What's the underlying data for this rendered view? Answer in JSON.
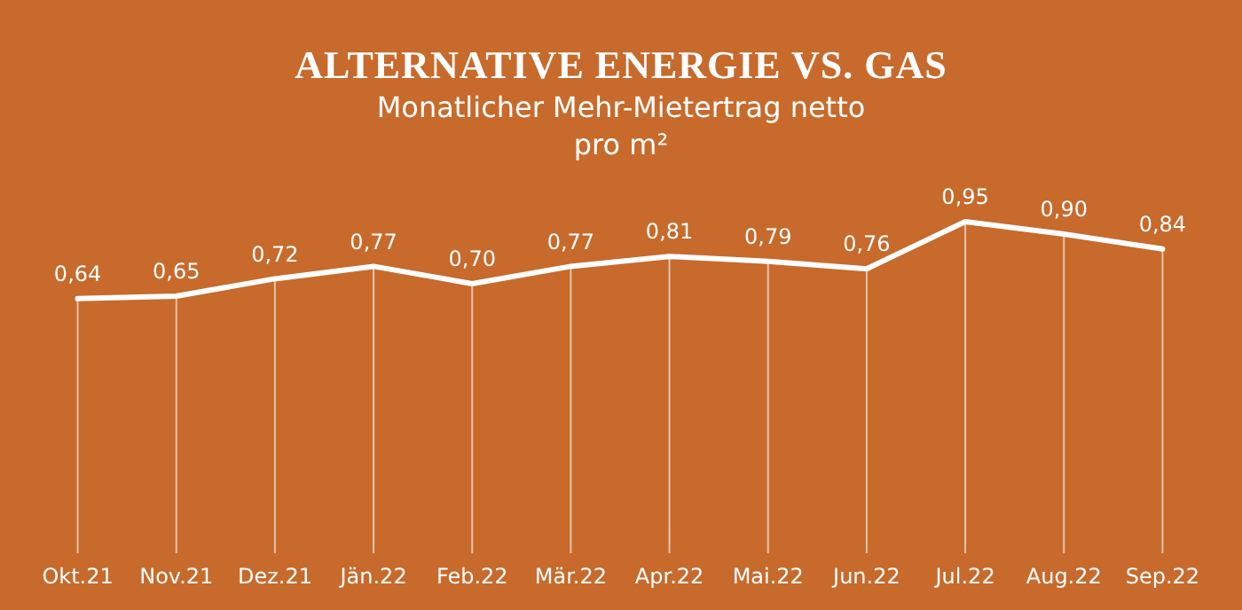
{
  "chart_data": {
    "type": "line",
    "title": "ALTERNATIVE ENERGIE VS. GAS",
    "subtitle": "Monatlicher Mehr-Mietertrag netto pro m²",
    "categories": [
      "Okt.21",
      "Nov.21",
      "Dez.21",
      "Jän.22",
      "Feb.22",
      "Mär.22",
      "Apr.22",
      "Mai.22",
      "Jun.22",
      "Jul.22",
      "Aug.22",
      "Sep.22"
    ],
    "values": [
      0.64,
      0.65,
      0.72,
      0.77,
      0.7,
      0.77,
      0.81,
      0.79,
      0.76,
      0.95,
      0.9,
      0.84
    ],
    "value_labels": [
      "0,64",
      "0,65",
      "0,72",
      "0,77",
      "0,70",
      "0,77",
      "0,81",
      "0,79",
      "0,76",
      "0,95",
      "0,90",
      "0,84"
    ],
    "color": "#ffffff",
    "marker": "none",
    "grid": "x"
  }
}
